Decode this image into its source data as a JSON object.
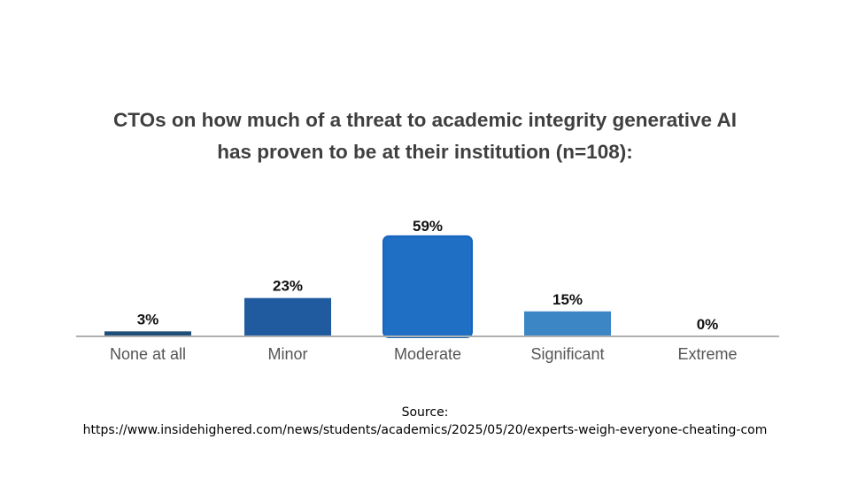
{
  "chart_data": {
    "type": "bar",
    "title_lines": [
      "CTOs on how much of a threat to academic integrity generative AI",
      "has proven to be at their institution (n=108):"
    ],
    "categories": [
      "None at all",
      "Minor",
      "Moderate",
      "Significant",
      "Extreme"
    ],
    "values": [
      3,
      23,
      59,
      15,
      0
    ],
    "value_labels": [
      "3%",
      "23%",
      "59%",
      "15%",
      "0%"
    ],
    "highlighted_category": "Moderate",
    "ylim": [
      0,
      60
    ],
    "xlabel": "",
    "ylabel": "",
    "grid": false,
    "colors": [
      "#1f4e79",
      "#1f5b9e",
      "#1f6fc5",
      "#3d86c6",
      "#5a9bd5"
    ],
    "axis_color": "#b0b0b0"
  },
  "source": {
    "label": "Source:",
    "url": "https://www.insidehighered.com/news/students/academics/2025/05/20/experts-weigh-everyone-cheating-com"
  }
}
